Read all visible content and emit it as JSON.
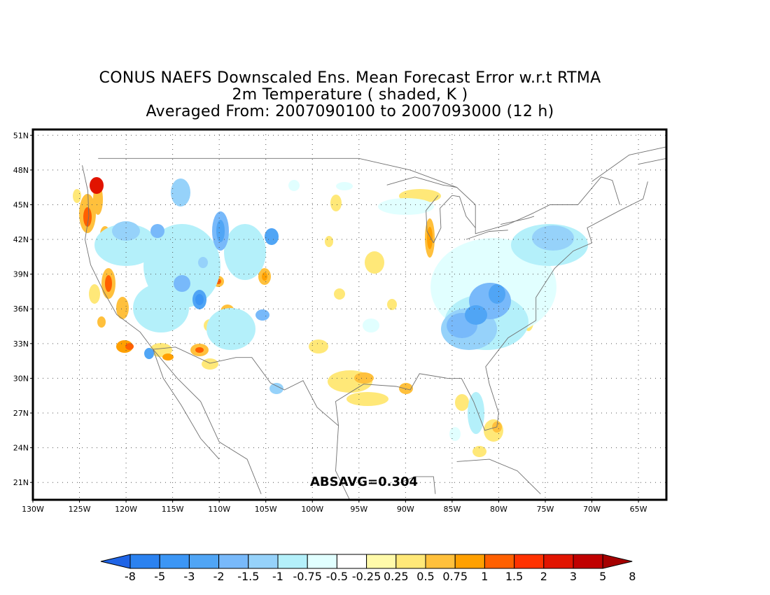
{
  "title": {
    "line1": "CONUS NAEFS Downscaled Ens. Mean Forecast Error w.r.t RTMA",
    "line2": "2m Temperature ( shaded, K )",
    "line3": "Averaged From: 2007090100 to 2007093000 (12 h)"
  },
  "annotation": "ABSAVG=0.304",
  "map": {
    "lon_range": [
      -130,
      -62
    ],
    "lat_range": [
      19.5,
      51.5
    ],
    "lon_ticks": [
      "130W",
      "125W",
      "120W",
      "115W",
      "110W",
      "105W",
      "100W",
      "95W",
      "90W",
      "85W",
      "80W",
      "75W",
      "70W",
      "65W"
    ],
    "lat_ticks": [
      "51N",
      "48N",
      "45N",
      "42N",
      "39N",
      "36N",
      "33N",
      "30N",
      "27N",
      "24N",
      "21N"
    ],
    "grid": "dotted"
  },
  "colorbar": {
    "labels": [
      "-8",
      "-5",
      "-3",
      "-2",
      "-1.5",
      "-1",
      "-0.75",
      "-0.5",
      "-0.25",
      "0.25",
      "0.5",
      "0.75",
      "1",
      "1.5",
      "2",
      "3",
      "5",
      "8"
    ],
    "colors": [
      "#1f64e6",
      "#2b82f0",
      "#3c96f5",
      "#50a5f5",
      "#78b9fa",
      "#96d2fa",
      "#b4f0fa",
      "#e1ffff",
      "#ffffff",
      "#fffaaa",
      "#ffe878",
      "#ffc03c",
      "#ffa000",
      "#ff6000",
      "#ff3200",
      "#e11400",
      "#c00000",
      "#a50000"
    ],
    "orientation": "horizontal"
  }
}
